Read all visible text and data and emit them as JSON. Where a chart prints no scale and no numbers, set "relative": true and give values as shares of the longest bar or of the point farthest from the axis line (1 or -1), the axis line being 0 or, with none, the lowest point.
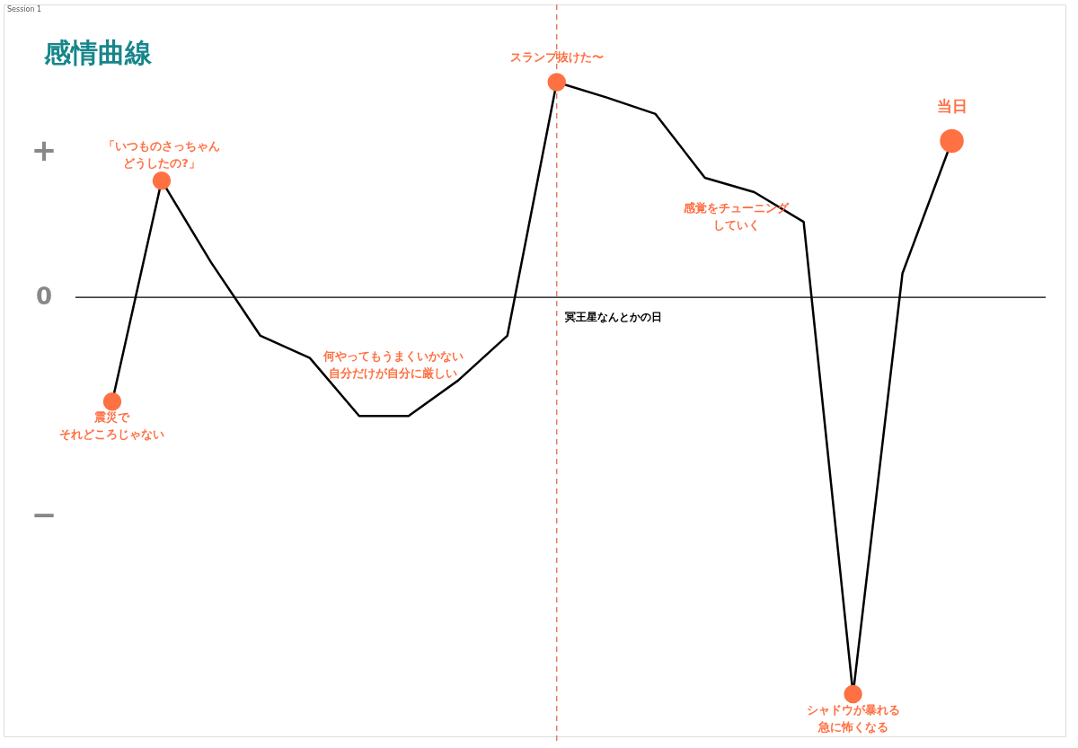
{
  "chart_data": {
    "type": "line",
    "title": "感情曲線",
    "relative": true,
    "categories": [
      null,
      null,
      null,
      null,
      null,
      null,
      null,
      null,
      null,
      null,
      null,
      null,
      null,
      null,
      null,
      null,
      null,
      null
    ],
    "series": [
      {
        "color": "#000000",
        "values": [
          -0.263,
          0.294,
          0.088,
          -0.097,
          -0.153,
          -0.299,
          -0.299,
          -0.21,
          -0.097,
          0.542,
          0.504,
          0.462,
          0.301,
          0.265,
          0.19,
          -1,
          0.06,
          0.394
        ]
      }
    ],
    "annotations": [
      "Session 1",
      "+",
      "0",
      "−",
      {
        "text": "震災でそれどころじゃない",
        "y": -0.263
      },
      {
        "text": "「いつものさっちゃんどうしたの?」",
        "y": 0.294
      },
      "何やってもうまくいかない自分だけが自分に厳しい",
      {
        "text": "スランプ抜けた〜",
        "y": 0.542
      },
      "感覚をチューニングしていく",
      {
        "text": "シャドウが暴れる急に怖くなる",
        "y": -1
      },
      {
        "text": "当日",
        "y": 0.394
      },
      "冥王星なんとかの日"
    ]
  }
}
